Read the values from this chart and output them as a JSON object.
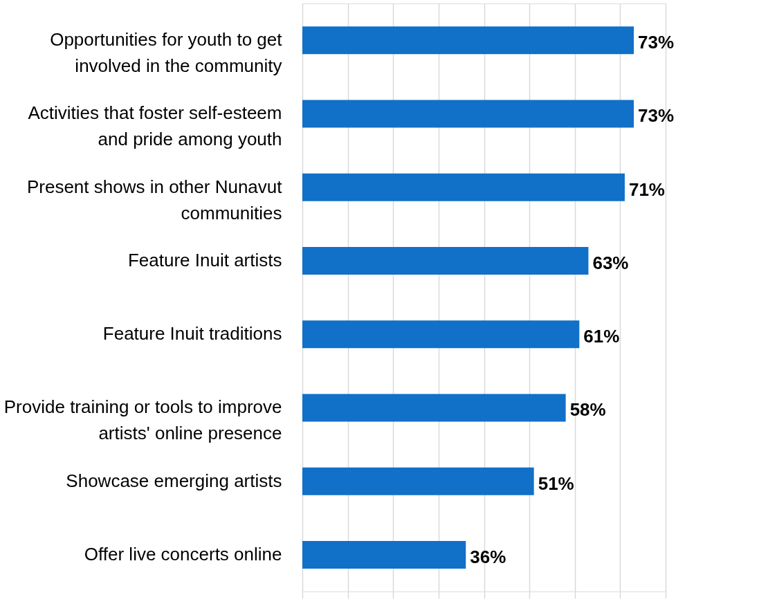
{
  "chart_data": {
    "type": "bar",
    "orientation": "horizontal",
    "categories": [
      "Opportunities for youth to get involved in the community",
      "Activities that foster self-esteem and pride among youth",
      "Present shows in other Nunavut communities",
      "Feature Inuit artists",
      "Feature Inuit traditions",
      "Provide training or tools to improve artists' online presence",
      "Showcase emerging artists",
      "Offer live concerts online"
    ],
    "values": [
      73,
      73,
      71,
      63,
      61,
      58,
      51,
      36
    ],
    "value_labels": [
      "73%",
      "73%",
      "71%",
      "63%",
      "61%",
      "58%",
      "51%",
      "36%"
    ],
    "color": "#1170c8",
    "xlim": [
      0,
      80
    ],
    "xticks": [
      {
        "value": 0,
        "label": null
      },
      {
        "value": 10,
        "label": null
      },
      {
        "value": 20,
        "label": null
      },
      {
        "value": 30,
        "label": null
      },
      {
        "value": 40,
        "label": null
      },
      {
        "value": 50,
        "label": null
      },
      {
        "value": 60,
        "label": null
      },
      {
        "value": 70,
        "label": null
      },
      {
        "value": 80,
        "label": null
      }
    ],
    "grid": "x",
    "tick_labels": "y"
  }
}
